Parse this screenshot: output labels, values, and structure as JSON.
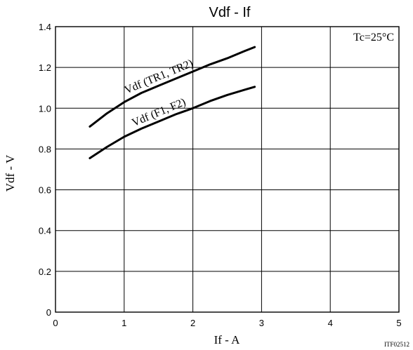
{
  "chart_data": {
    "type": "line",
    "title": "Vdf - If",
    "xlabel": "If - A",
    "ylabel": "Vdf - V",
    "xlim": [
      0,
      5
    ],
    "ylim": [
      0,
      1.4
    ],
    "xticks": [
      "0",
      "1",
      "2",
      "3",
      "4",
      "5"
    ],
    "yticks": [
      "0",
      "0.2",
      "0.4",
      "0.6",
      "0.8",
      "1.0",
      "1.2",
      "1.4"
    ],
    "grid": true,
    "annotation": "Tc=25°C",
    "figure_code": "ITF02512",
    "series": [
      {
        "name": "Vdf (TR1, TR2)",
        "x": [
          0.5,
          0.75,
          1.0,
          1.25,
          1.5,
          1.75,
          2.0,
          2.25,
          2.5,
          2.75,
          2.9
        ],
        "y": [
          0.91,
          0.975,
          1.03,
          1.075,
          1.11,
          1.145,
          1.18,
          1.215,
          1.245,
          1.28,
          1.3
        ]
      },
      {
        "name": "Vdf (F1, F2)",
        "x": [
          0.5,
          0.75,
          1.0,
          1.25,
          1.5,
          1.75,
          2.0,
          2.25,
          2.5,
          2.75,
          2.9
        ],
        "y": [
          0.755,
          0.81,
          0.86,
          0.9,
          0.935,
          0.97,
          1.0,
          1.035,
          1.065,
          1.09,
          1.105
        ]
      }
    ]
  }
}
